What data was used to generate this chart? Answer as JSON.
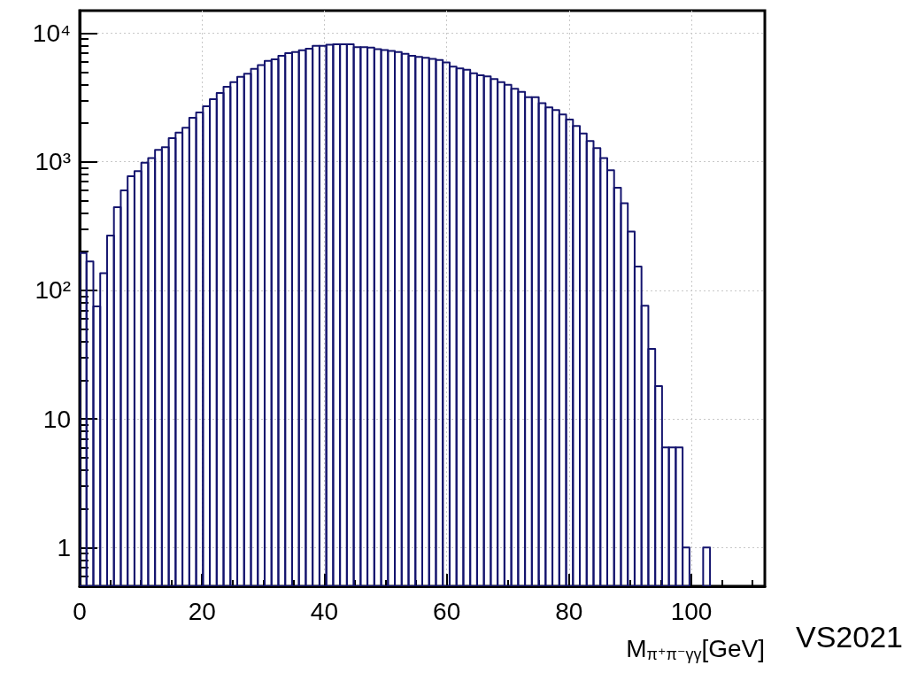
{
  "chart_data": {
    "type": "histogram",
    "xlabel": "M$_{π⁺π⁻γγ}$[GeV]",
    "annotations": [
      "VS2021"
    ],
    "bins": [
      0,
      1.12,
      2.24,
      3.36,
      4.48,
      5.6,
      6.72,
      7.84,
      8.96,
      10.08,
      11.2,
      12.32,
      13.44,
      14.56,
      15.68,
      16.8,
      17.92,
      19.04,
      20.16,
      21.28,
      22.4,
      23.52,
      24.64,
      25.76,
      26.88,
      28,
      29.12,
      30.24,
      31.36,
      32.48,
      33.6,
      34.72,
      35.84,
      36.96,
      38.08,
      39.2,
      40.32,
      41.44,
      42.56,
      43.68,
      44.8,
      45.92,
      47.04,
      48.16,
      49.28,
      50.4,
      51.52,
      52.64,
      53.76,
      54.88,
      56,
      57.12,
      58.24,
      59.36,
      60.48,
      61.6,
      62.72,
      63.84,
      64.96,
      66.08,
      67.2,
      68.32,
      69.44,
      70.56,
      71.68,
      72.8,
      73.92,
      75.04,
      76.16,
      77.28,
      78.4,
      79.52,
      80.64,
      81.76,
      82.88,
      84,
      85.12,
      86.24,
      87.36,
      88.48,
      89.6,
      90.72,
      91.84,
      92.96,
      94.08,
      95.2,
      96.32,
      97.44,
      98.56,
      99.68,
      100.8,
      101.92,
      103.04,
      104.16,
      105.28,
      106.4,
      107.52,
      108.64,
      109.76,
      110.88,
      112
    ],
    "values": [
      195,
      168,
      75,
      136,
      267,
      444,
      600,
      774,
      848,
      986,
      1070,
      1240,
      1300,
      1530,
      1690,
      1840,
      2200,
      2420,
      2710,
      3070,
      3430,
      3830,
      4170,
      4590,
      4850,
      5280,
      5650,
      6100,
      6280,
      6680,
      7010,
      7160,
      7370,
      7570,
      8000,
      8000,
      8130,
      8200,
      8200,
      8200,
      7800,
      7800,
      7740,
      7520,
      7420,
      7300,
      7160,
      6920,
      6680,
      6550,
      6450,
      6330,
      6190,
      5940,
      5500,
      5330,
      5200,
      4890,
      4720,
      4620,
      4400,
      4170,
      3970,
      3700,
      3500,
      3180,
      3180,
      2860,
      2650,
      2530,
      2340,
      2130,
      1900,
      1660,
      1450,
      1280,
      1070,
      860,
      630,
      476,
      287,
      153,
      76,
      35,
      18,
      6,
      6,
      6,
      1,
      null,
      null,
      1,
      null,
      null,
      null,
      null,
      null,
      null,
      null,
      null
    ],
    "color": "#14146e",
    "log": "y",
    "grid": true,
    "xlim": [
      0,
      112
    ],
    "xticks": [
      0,
      20,
      40,
      60,
      80,
      100
    ],
    "ylim": [
      0.5,
      15000
    ],
    "yticks": [
      1,
      10,
      {
        "value": 100,
        "label": "10²"
      },
      {
        "value": 1000,
        "label": "10³"
      },
      {
        "value": 10000,
        "label": "10⁴"
      }
    ]
  }
}
